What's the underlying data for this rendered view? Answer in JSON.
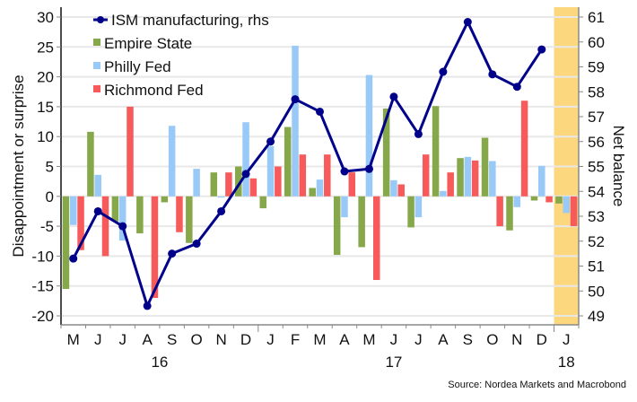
{
  "chart_data": {
    "type": "bar",
    "title": "",
    "ylabel": "Disappointment or surprise",
    "y2label": "Net balance",
    "xlabel": "",
    "ylim": [
      -20,
      30
    ],
    "y2lim": [
      49,
      61
    ],
    "yticks": [
      "30",
      "25",
      "20",
      "15",
      "10",
      "5",
      "0",
      "-5",
      "-10",
      "-15",
      "-20"
    ],
    "y2ticks": [
      "61",
      "60",
      "59",
      "58",
      "57",
      "56",
      "55",
      "54",
      "53",
      "52",
      "51",
      "50",
      "49"
    ],
    "grid": true,
    "legend_position": "top-left",
    "categories": [
      "M",
      "J",
      "J",
      "A",
      "S",
      "O",
      "N",
      "D",
      "J",
      "F",
      "M",
      "A",
      "M",
      "J",
      "J",
      "A",
      "S",
      "O",
      "N",
      "D",
      "J"
    ],
    "year_labels": [
      {
        "label": "16",
        "under_index": 3.5
      },
      {
        "label": "17",
        "under_index": 13
      },
      {
        "label": "18",
        "under_index": 20
      }
    ],
    "highlight": {
      "from_index": 20,
      "to_index": 20,
      "color": "#fdd77e"
    },
    "series": [
      {
        "name": "Empire State",
        "kind": "bar",
        "axis": "left",
        "color": "#86a84a",
        "values": [
          -15.5,
          10.8,
          -4.2,
          -6.2,
          -1.0,
          -7.8,
          4.0,
          5.0,
          -2.0,
          11.6,
          1.4,
          -9.8,
          -8.5,
          14.7,
          -5.2,
          15.1,
          6.4,
          9.8,
          -5.7,
          -0.7,
          -1.2
        ]
      },
      {
        "name": "Philly Fed",
        "kind": "bar",
        "axis": "left",
        "color": "#99c9f7",
        "values": [
          -4.8,
          3.6,
          -7.4,
          0,
          11.8,
          4.6,
          -0.2,
          12.4,
          8.4,
          25.2,
          2.8,
          -3.5,
          20.3,
          2.7,
          -3.5,
          0.9,
          6.6,
          5.9,
          -1.8,
          5.1,
          -2.8
        ]
      },
      {
        "name": "Richmond Fed",
        "kind": "bar",
        "axis": "left",
        "color": "#f65a5a",
        "values": [
          -9,
          -10,
          15,
          -17,
          -6,
          0,
          4,
          3,
          5,
          7,
          7,
          4,
          -14,
          2,
          7,
          4,
          6,
          -5,
          16,
          -1,
          -5
        ]
      },
      {
        "name": "ISM manufacturing, rhs",
        "kind": "line",
        "axis": "right",
        "color": "#00008b",
        "values": [
          51.3,
          53.2,
          52.6,
          49.4,
          51.5,
          51.9,
          53.2,
          54.7,
          56.0,
          57.7,
          57.2,
          54.8,
          54.9,
          57.8,
          56.3,
          58.8,
          60.8,
          58.7,
          58.2,
          59.7,
          null
        ]
      }
    ],
    "source": "Source: Nordea Markets and Macrobond"
  }
}
